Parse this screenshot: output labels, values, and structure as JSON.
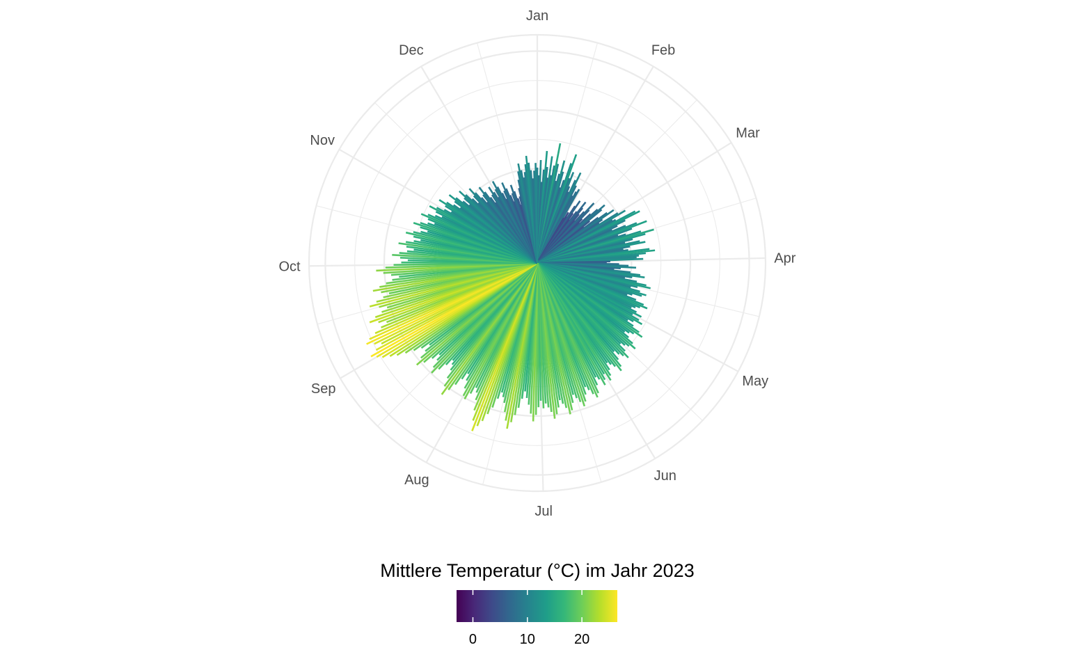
{
  "chart_data": {
    "type": "polar-bar",
    "description_free": true,
    "months": [
      "Jan",
      "Feb",
      "Mar",
      "Apr",
      "May",
      "Jun",
      "Jul",
      "Aug",
      "Sep",
      "Oct",
      "Nov",
      "Dec"
    ],
    "month_starts_day": [
      1,
      32,
      60,
      91,
      121,
      152,
      182,
      213,
      244,
      274,
      305,
      335
    ],
    "days_in_year": 365,
    "radial_range": [
      -6,
      33
    ],
    "radial_gridlines": [
      0,
      10,
      20,
      30
    ],
    "grid": true,
    "legend": {
      "title": "Mittlere Temperatur (°C) im Jahr 2023",
      "breaks": [
        0,
        10,
        20
      ],
      "break_labels": [
        "0",
        "10",
        "20"
      ],
      "range": [
        -3,
        26.5
      ],
      "placement": "bottom",
      "palette": [
        "#440154",
        "#482878",
        "#3e4a89",
        "#31688e",
        "#26828e",
        "#1f9e89",
        "#35b779",
        "#6ece58",
        "#b5de2b",
        "#fde725"
      ]
    },
    "monthly_profile": {
      "Jan": 8.5,
      "Feb": 5.5,
      "Mar": 9.0,
      "Apr": 10.5,
      "May": 14.0,
      "Jun": 18.0,
      "Jul": 19.5,
      "Aug": 18.5,
      "Sep": 21.5,
      "Oct": 15.0,
      "Nov": 9.5,
      "Dec": 7.0
    },
    "values": [
      10.2,
      8.9,
      11.5,
      7.8,
      9.9,
      13.1,
      10.4,
      8.6,
      12.3,
      9.1,
      10.8,
      14.7,
      11.2,
      8.3,
      9.6,
      12.0,
      10.1,
      7.4,
      8.8,
      11.9,
      13.6,
      9.4,
      10.6,
      8.1,
      7.2,
      9.5,
      11.0,
      8.7,
      6.9,
      7.8,
      8.4,
      2.9,
      4.1,
      3.3,
      5.6,
      6.8,
      4.4,
      3.1,
      5.0,
      7.2,
      6.1,
      4.9,
      3.6,
      5.8,
      8.0,
      6.6,
      4.7,
      3.9,
      6.3,
      7.7,
      9.1,
      8.2,
      5.4,
      4.0,
      6.9,
      8.6,
      9.8,
      7.3,
      6.5,
      10.1,
      11.4,
      8.7,
      9.2,
      12.8,
      13.5,
      10.6,
      9.0,
      7.9,
      10.3,
      12.2,
      13.9,
      11.1,
      8.5,
      9.8,
      12.4,
      14.6,
      13.0,
      10.7,
      9.3,
      11.8,
      12.7,
      10.0,
      8.8,
      9.6,
      13.2,
      14.1,
      12.5,
      11.3,
      10.9,
      12.0,
      6.4,
      5.8,
      7.9,
      9.5,
      10.8,
      8.2,
      7.1,
      9.9,
      11.6,
      12.4,
      10.3,
      9.1,
      11.2,
      12.9,
      13.7,
      11.5,
      10.4,
      12.1,
      13.3,
      12.6,
      11.0,
      10.2,
      11.9,
      13.4,
      14.2,
      13.0,
      12.3,
      11.7,
      12.8,
      13.9,
      12.4,
      13.8,
      14.6,
      13.1,
      12.2,
      13.5,
      14.9,
      15.8,
      14.3,
      13.6,
      12.9,
      14.0,
      15.2,
      16.1,
      15.0,
      14.4,
      13.7,
      15.1,
      16.3,
      15.5,
      14.8,
      13.9,
      15.4,
      16.6,
      17.2,
      16.0,
      15.3,
      14.7,
      15.9,
      16.8,
      17.5,
      16.0,
      16.9,
      17.7,
      16.4,
      15.8,
      17.1,
      18.4,
      19.0,
      18.2,
      17.3,
      16.6,
      17.8,
      18.9,
      19.6,
      18.7,
      17.9,
      17.2,
      18.5,
      19.7,
      20.3,
      19.1,
      18.3,
      17.6,
      18.8,
      19.9,
      20.6,
      19.4,
      18.6,
      17.9,
      18.7,
      17.4,
      18.5,
      19.8,
      20.9,
      19.6,
      18.1,
      17.0,
      15.9,
      17.2,
      18.8,
      20.1,
      21.4,
      22.6,
      21.3,
      19.9,
      18.4,
      17.5,
      16.8,
      18.0,
      19.7,
      21.0,
      22.4,
      23.5,
      24.6,
      22.9,
      21.2,
      19.5,
      18.3,
      17.6,
      18.9,
      20.2,
      19.8,
      18.6,
      17.3,
      16.2,
      17.5,
      18.9,
      20.3,
      21.6,
      20.2,
      18.8,
      17.4,
      16.5,
      15.9,
      17.2,
      18.6,
      19.9,
      19.0,
      17.7,
      16.8,
      18.1,
      19.6,
      20.8,
      19.5,
      18.2,
      17.0,
      18.4,
      19.7,
      21.1,
      22.5,
      23.6,
      24.8,
      25.6,
      26.4,
      25.1,
      23.8,
      24.9,
      26.1,
      25.3,
      24.0,
      22.7,
      21.5,
      22.8,
      24.2,
      23.0,
      21.7,
      20.6,
      21.9,
      23.4,
      22.1,
      20.8,
      19.7,
      21.0,
      22.3,
      21.1,
      19.9,
      18.8,
      17.6,
      18.9,
      20.2,
      21.4,
      19.8,
      18.4,
      17.1,
      16.0,
      17.3,
      18.7,
      17.5,
      16.2,
      15.1,
      16.4,
      17.8,
      16.6,
      15.3,
      14.2,
      15.5,
      16.9,
      15.7,
      14.5,
      13.4,
      14.8,
      16.1,
      15.0,
      13.8,
      12.7,
      14.0,
      15.4,
      14.3,
      13.1,
      12.0,
      13.3,
      14.7,
      13.5,
      12.2,
      11.0,
      12.4,
      13.8,
      12.5,
      11.3,
      10.1,
      11.5,
      12.9,
      11.7,
      10.4,
      9.2,
      10.6,
      12.0,
      10.8,
      9.5,
      8.3,
      9.7,
      11.1,
      9.9,
      8.6,
      7.4,
      8.8,
      10.2,
      9.0,
      7.7,
      6.5,
      7.9,
      9.3,
      8.1,
      7.0,
      8.4,
      9.8,
      8.6,
      7.3,
      6.1,
      7.5,
      8.9,
      7.7,
      6.4,
      5.2,
      6.6,
      8.0,
      6.8,
      5.5,
      4.3,
      5.7,
      7.1,
      8.5,
      9.9,
      11.2,
      10.0,
      8.7,
      9.6,
      10.9,
      12.3,
      11.1,
      9.8,
      8.4,
      9.7,
      11.0
    ]
  },
  "labels": {
    "months": [
      "Jan",
      "Feb",
      "Mar",
      "Apr",
      "May",
      "Jun",
      "Jul",
      "Aug",
      "Sep",
      "Oct",
      "Nov",
      "Dec"
    ],
    "legend_title": "Mittlere Temperatur (°C) im Jahr 2023",
    "legend_ticks": [
      "0",
      "10",
      "20"
    ]
  },
  "colors": {
    "grid": "#ebebeb",
    "text": "#4d4d4d"
  }
}
